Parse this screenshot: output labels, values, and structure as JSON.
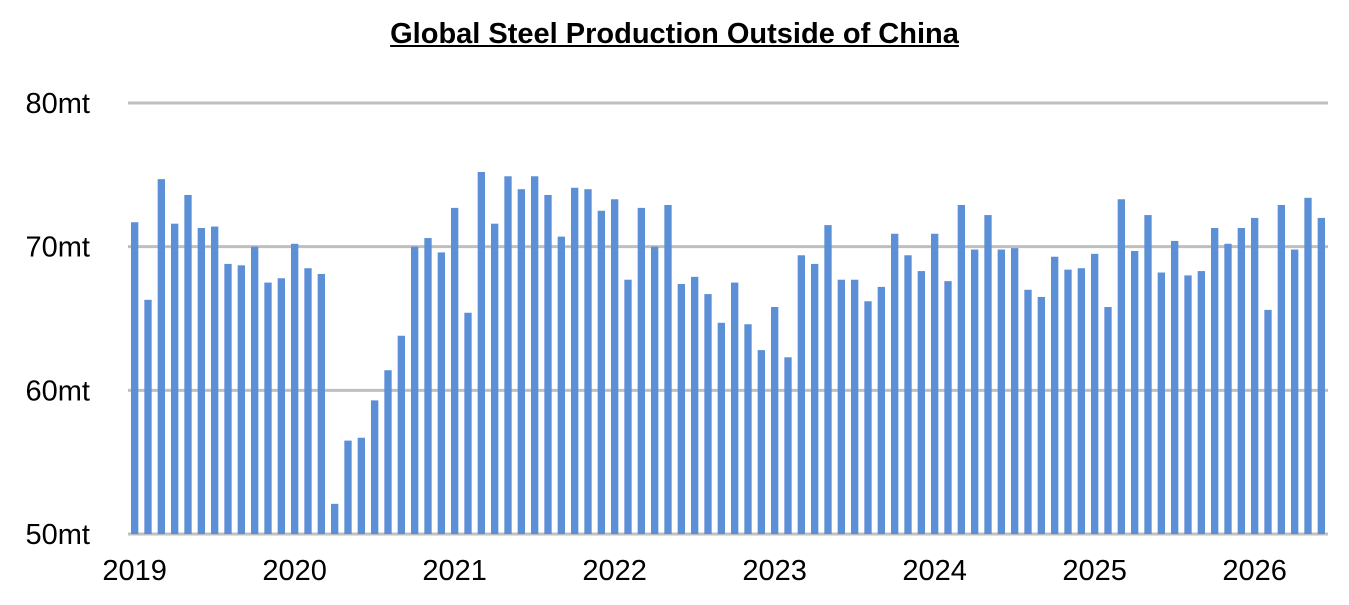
{
  "chart_data": {
    "type": "bar",
    "title": "Global Steel Production Outside of China",
    "xlabel": "",
    "ylabel": "",
    "ylim": [
      50,
      80
    ],
    "y_ticks": [
      "50mt",
      "60mt",
      "70mt",
      "80mt"
    ],
    "y_tick_values": [
      50,
      60,
      70,
      80
    ],
    "x_tick_labels": [
      "2019",
      "2020",
      "2021",
      "2022",
      "2023",
      "2024",
      "2025",
      "2026"
    ],
    "grid": true,
    "bar_color": "#5b8fd6",
    "grid_color": "#bfbfbf",
    "months_per_year": 12,
    "values": [
      71.7,
      66.3,
      74.7,
      71.6,
      73.6,
      71.3,
      71.4,
      68.8,
      68.7,
      70.0,
      67.5,
      67.8,
      70.2,
      68.5,
      68.1,
      52.1,
      56.5,
      56.7,
      59.3,
      61.4,
      63.8,
      70.0,
      70.6,
      69.6,
      72.7,
      65.4,
      75.2,
      71.6,
      74.9,
      74.0,
      74.9,
      73.6,
      70.7,
      74.1,
      74.0,
      72.5,
      73.3,
      67.7,
      72.7,
      70.0,
      72.9,
      67.4,
      67.9,
      66.7,
      64.7,
      67.5,
      64.6,
      62.8,
      65.8,
      62.3,
      69.4,
      68.8,
      71.5,
      67.7,
      67.7,
      66.2,
      67.2,
      70.9,
      69.4,
      68.3,
      70.9,
      67.6,
      72.9,
      69.8,
      72.2,
      69.8,
      69.9,
      67.0,
      66.5,
      69.3,
      68.4,
      68.5,
      69.5,
      65.8,
      73.3,
      69.7,
      72.2,
      68.2,
      70.4,
      68.0,
      68.3,
      71.3,
      70.2,
      71.3,
      72.0,
      65.6,
      72.9,
      69.8,
      73.4,
      72.0
    ]
  }
}
